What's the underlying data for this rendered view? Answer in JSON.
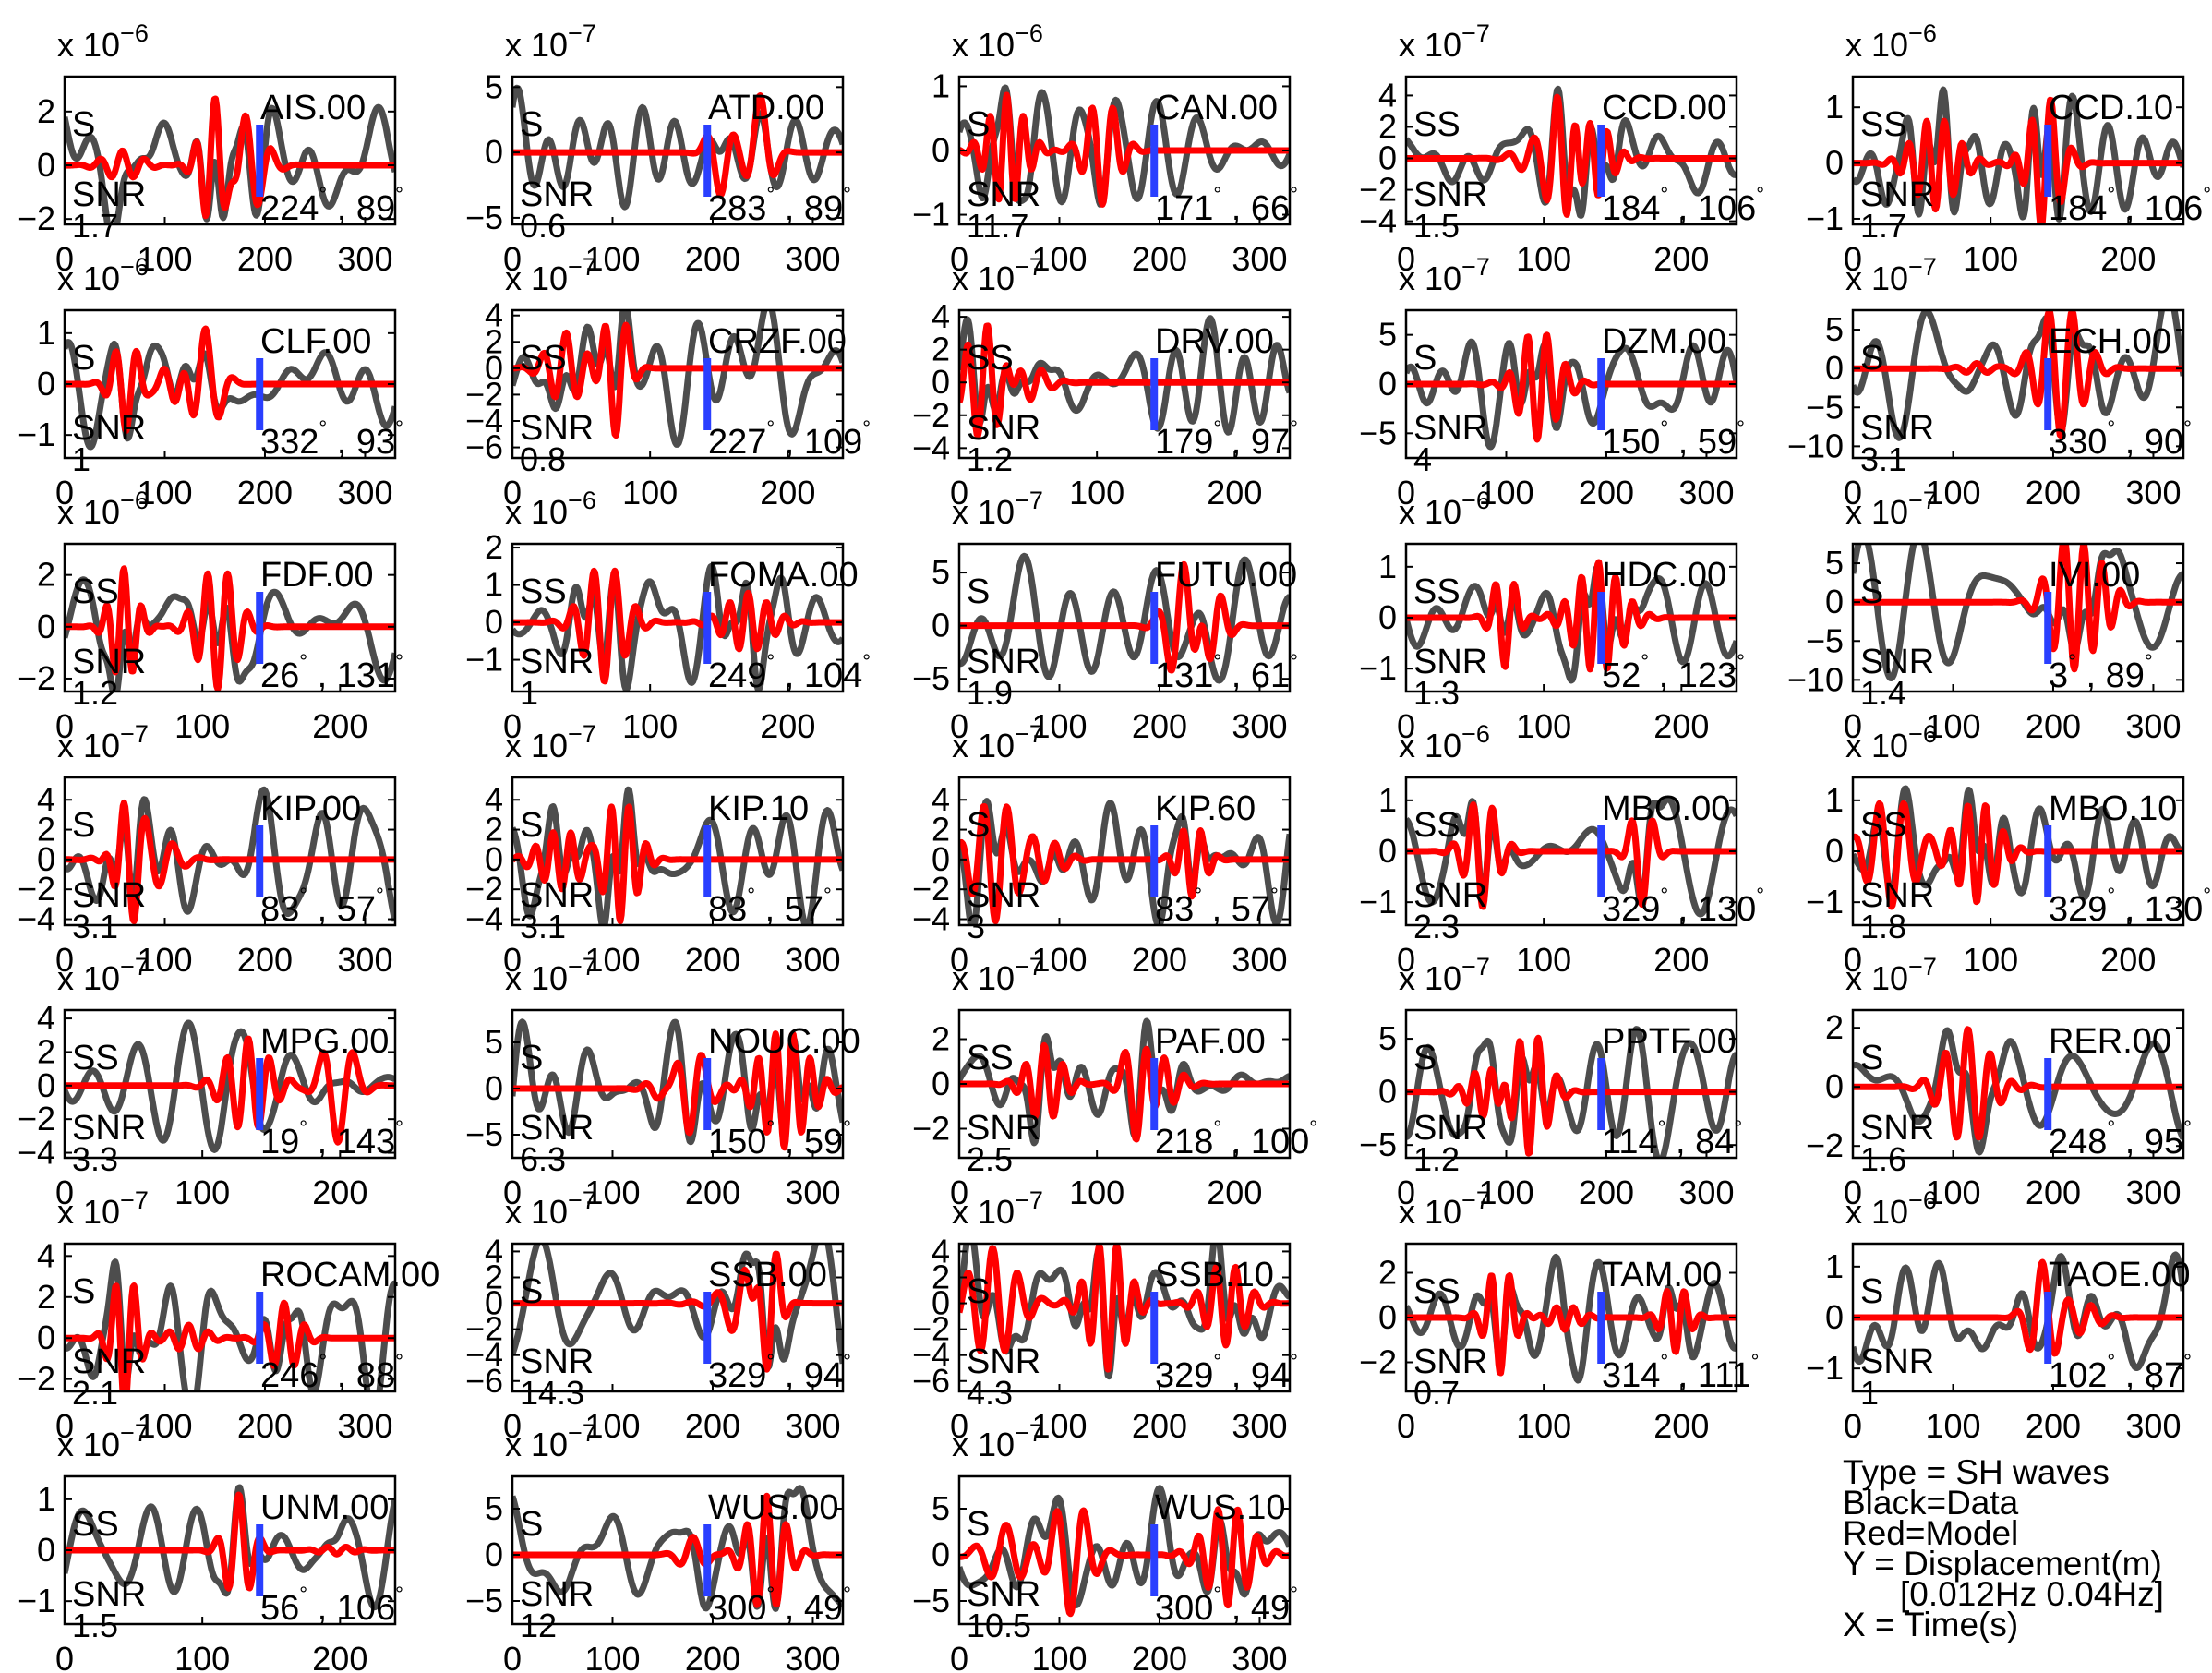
{
  "chart_data": {
    "type": "line",
    "layout": "grid of 33 seismogram panels, 5 columns",
    "legend": {
      "type_line": "Type = SH waves",
      "data_line": "Black=Data",
      "model_line": "Red=Model",
      "y_line": "Y = Displacement(m)",
      "band_line": "[0.012Hz 0.04Hz]",
      "x_line": "X = Time(s)"
    },
    "colors": {
      "data": "#4d4d4d",
      "model": "#ff0000",
      "marker": "#2a3fff"
    },
    "panels": [
      {
        "station": "AIS.00",
        "phase": "S",
        "snr": "1.7",
        "az": "224",
        "dist": "89",
        "exponent": "-6",
        "yticks": [
          -2,
          0,
          2
        ],
        "ylim": [
          -2.2,
          3.3
        ],
        "xticks": [
          0,
          100,
          200,
          300
        ],
        "xmax": 330,
        "show_x_ticks": true
      },
      {
        "station": "ATD.00",
        "phase": "S",
        "snr": "0.6",
        "az": "283",
        "dist": "89",
        "exponent": "-7",
        "yticks": [
          -5,
          0,
          5
        ],
        "ylim": [
          -5.5,
          5.8
        ],
        "xticks": [
          0,
          100,
          200,
          300
        ],
        "xmax": 330,
        "show_x_ticks": true
      },
      {
        "station": "CAN.00",
        "phase": "S",
        "snr": "11.7",
        "az": "171",
        "dist": "66",
        "exponent": "-6",
        "yticks": [
          -1,
          0,
          1
        ],
        "ylim": [
          -1.15,
          1.15
        ],
        "xticks": [
          0,
          100,
          200,
          300
        ],
        "xmax": 330,
        "show_x_ticks": true
      },
      {
        "station": "CCD.00",
        "phase": "SS",
        "snr": "1.5",
        "az": "184",
        "dist": "106",
        "exponent": "-7",
        "yticks": [
          -4,
          -2,
          0,
          2,
          4
        ],
        "ylim": [
          -4.2,
          5.2
        ],
        "xticks": [
          0,
          100,
          200
        ],
        "xmax": 240,
        "show_x_ticks": true
      },
      {
        "station": "CCD.10",
        "phase": "SS",
        "snr": "1.7",
        "az": "184",
        "dist": "106",
        "exponent": "-6",
        "yticks": [
          -1,
          0,
          1
        ],
        "ylim": [
          -1.1,
          1.55
        ],
        "xticks": [
          0,
          100,
          200
        ],
        "xmax": 240,
        "show_x_ticks": true
      },
      {
        "station": "CLF.00",
        "phase": "S",
        "snr": "1",
        "az": "332",
        "dist": "93",
        "exponent": "-6",
        "yticks": [
          -1,
          0,
          1
        ],
        "ylim": [
          -1.45,
          1.45
        ],
        "xticks": [
          0,
          100,
          200,
          300
        ],
        "xmax": 330,
        "show_x_ticks": true
      },
      {
        "station": "CRZF.00",
        "phase": "SS",
        "snr": "0.8",
        "az": "227",
        "dist": "109",
        "exponent": "-7",
        "yticks": [
          -6,
          -4,
          -2,
          0,
          2,
          4
        ],
        "ylim": [
          -6.8,
          4.4
        ],
        "xticks": [
          0,
          100,
          200
        ],
        "xmax": 240,
        "show_x_ticks": true
      },
      {
        "station": "DRV.00",
        "phase": "SS",
        "snr": "1.2",
        "az": "179",
        "dist": "97",
        "exponent": "-7",
        "yticks": [
          -4,
          -2,
          0,
          2,
          4
        ],
        "ylim": [
          -4.6,
          4.4
        ],
        "xticks": [
          0,
          100,
          200
        ],
        "xmax": 240,
        "show_x_ticks": true
      },
      {
        "station": "DZM.00",
        "phase": "S",
        "snr": "4",
        "az": "150",
        "dist": "59",
        "exponent": "-7",
        "yticks": [
          -5,
          0,
          5
        ],
        "ylim": [
          -7.5,
          7.5
        ],
        "xticks": [
          0,
          100,
          200,
          300
        ],
        "xmax": 330,
        "show_x_ticks": true
      },
      {
        "station": "ECH.00",
        "phase": "S",
        "snr": "3.1",
        "az": "330",
        "dist": "90",
        "exponent": "-7",
        "yticks": [
          -10,
          -5,
          0,
          5
        ],
        "ylim": [
          -11.5,
          7.5
        ],
        "xticks": [
          0,
          100,
          200,
          300
        ],
        "xmax": 330,
        "show_x_ticks": true
      },
      {
        "station": "FDF.00",
        "phase": "SS",
        "snr": "1.2",
        "az": "26",
        "dist": "131",
        "exponent": "-6",
        "yticks": [
          -2,
          0,
          2
        ],
        "ylim": [
          -2.5,
          3.2
        ],
        "xticks": [
          0,
          100,
          200
        ],
        "xmax": 240,
        "show_x_ticks": true
      },
      {
        "station": "FOMA.00",
        "phase": "SS",
        "snr": "1",
        "az": "249",
        "dist": "104",
        "exponent": "-6",
        "yticks": [
          -1,
          0,
          1,
          2
        ],
        "ylim": [
          -1.85,
          2.1
        ],
        "xticks": [
          0,
          100,
          200
        ],
        "xmax": 240,
        "show_x_ticks": true
      },
      {
        "station": "FUTU.00",
        "phase": "S",
        "snr": "1.9",
        "az": "131",
        "dist": "61",
        "exponent": "-7",
        "yticks": [
          -5,
          0,
          5
        ],
        "ylim": [
          -6.2,
          7.7
        ],
        "xticks": [
          0,
          100,
          200,
          300
        ],
        "xmax": 330,
        "show_x_ticks": true
      },
      {
        "station": "HDC.00",
        "phase": "SS",
        "snr": "1.3",
        "az": "52",
        "dist": "123",
        "exponent": "-6",
        "yticks": [
          -1,
          0,
          1
        ],
        "ylim": [
          -1.45,
          1.45
        ],
        "xticks": [
          0,
          100,
          200
        ],
        "xmax": 240,
        "show_x_ticks": true
      },
      {
        "station": "IVI.00",
        "phase": "S",
        "snr": "1.4",
        "az": "3",
        "dist": "89",
        "exponent": "-7",
        "yticks": [
          -10,
          -5,
          0,
          5
        ],
        "ylim": [
          -11.5,
          7.5
        ],
        "xticks": [
          0,
          100,
          200,
          300
        ],
        "xmax": 330,
        "show_x_ticks": true
      },
      {
        "station": "KIP.00",
        "phase": "S",
        "snr": "3.1",
        "az": "83",
        "dist": "57",
        "exponent": "-7",
        "yticks": [
          -4,
          -2,
          0,
          2,
          4
        ],
        "ylim": [
          -4.4,
          5.5
        ],
        "xticks": [
          0,
          100,
          200,
          300
        ],
        "xmax": 330,
        "show_x_ticks": true
      },
      {
        "station": "KIP.10",
        "phase": "S",
        "snr": "3.1",
        "az": "83",
        "dist": "57",
        "exponent": "-7",
        "yticks": [
          -4,
          -2,
          0,
          2,
          4
        ],
        "ylim": [
          -4.4,
          5.5
        ],
        "xticks": [
          0,
          100,
          200,
          300
        ],
        "xmax": 330,
        "show_x_ticks": true
      },
      {
        "station": "KIP.60",
        "phase": "S",
        "snr": "3",
        "az": "83",
        "dist": "57",
        "exponent": "-7",
        "yticks": [
          -4,
          -2,
          0,
          2,
          4
        ],
        "ylim": [
          -4.4,
          5.5
        ],
        "xticks": [
          0,
          100,
          200,
          300
        ],
        "xmax": 330,
        "show_x_ticks": true
      },
      {
        "station": "MBO.00",
        "phase": "SS",
        "snr": "2.3",
        "az": "329",
        "dist": "130",
        "exponent": "-6",
        "yticks": [
          -1,
          0,
          1
        ],
        "ylim": [
          -1.45,
          1.45
        ],
        "xticks": [
          0,
          100,
          200
        ],
        "xmax": 240,
        "show_x_ticks": true
      },
      {
        "station": "MBO.10",
        "phase": "SS",
        "snr": "1.8",
        "az": "329",
        "dist": "130",
        "exponent": "-6",
        "yticks": [
          -1,
          0,
          1
        ],
        "ylim": [
          -1.45,
          1.45
        ],
        "xticks": [
          0,
          100,
          200
        ],
        "xmax": 240,
        "show_x_ticks": true
      },
      {
        "station": "MPG.00",
        "phase": "SS",
        "snr": "3.3",
        "az": "19",
        "dist": "143",
        "exponent": "-7",
        "yticks": [
          -4,
          -2,
          0,
          2,
          4
        ],
        "ylim": [
          -4.3,
          4.5
        ],
        "xticks": [
          0,
          100,
          200
        ],
        "xmax": 240,
        "show_x_ticks": true
      },
      {
        "station": "NOUC.00",
        "phase": "S",
        "snr": "6.3",
        "az": "150",
        "dist": "59",
        "exponent": "-7",
        "yticks": [
          -5,
          0,
          5
        ],
        "ylim": [
          -7.5,
          8.5
        ],
        "xticks": [
          0,
          100,
          200,
          300
        ],
        "xmax": 330,
        "show_x_ticks": true
      },
      {
        "station": "PAF.00",
        "phase": "SS",
        "snr": "2.5",
        "az": "218",
        "dist": "100",
        "exponent": "-7",
        "yticks": [
          -2,
          0,
          2
        ],
        "ylim": [
          -3.3,
          3.3
        ],
        "xticks": [
          0,
          100,
          200
        ],
        "xmax": 240,
        "show_x_ticks": true
      },
      {
        "station": "PPTF.00",
        "phase": "S",
        "snr": "1.2",
        "az": "114",
        "dist": "84",
        "exponent": "-7",
        "yticks": [
          -5,
          0,
          5
        ],
        "ylim": [
          -6.2,
          7.7
        ],
        "xticks": [
          0,
          100,
          200,
          300
        ],
        "xmax": 330,
        "show_x_ticks": true
      },
      {
        "station": "RER.00",
        "phase": "S",
        "snr": "1.6",
        "az": "248",
        "dist": "95",
        "exponent": "-7",
        "yticks": [
          -2,
          0,
          2
        ],
        "ylim": [
          -2.4,
          2.6
        ],
        "xticks": [
          0,
          100,
          200,
          300
        ],
        "xmax": 330,
        "show_x_ticks": true
      },
      {
        "station": "ROCAM.00",
        "phase": "S",
        "snr": "2.1",
        "az": "246",
        "dist": "88",
        "exponent": "-7",
        "yticks": [
          -2,
          0,
          2,
          4
        ],
        "ylim": [
          -2.6,
          4.6
        ],
        "xticks": [
          0,
          100,
          200,
          300
        ],
        "xmax": 330,
        "show_x_ticks": true
      },
      {
        "station": "SSB.00",
        "phase": "S",
        "snr": "14.3",
        "az": "329",
        "dist": "94",
        "exponent": "-7",
        "yticks": [
          -6,
          -4,
          -2,
          0,
          2,
          4
        ],
        "ylim": [
          -6.8,
          4.6
        ],
        "xticks": [
          0,
          100,
          200,
          300
        ],
        "xmax": 330,
        "show_x_ticks": true
      },
      {
        "station": "SSB.10",
        "phase": "S",
        "snr": "4.3",
        "az": "329",
        "dist": "94",
        "exponent": "-7",
        "yticks": [
          -6,
          -4,
          -2,
          0,
          2,
          4
        ],
        "ylim": [
          -6.8,
          4.6
        ],
        "xticks": [
          0,
          100,
          200,
          300
        ],
        "xmax": 330,
        "show_x_ticks": true
      },
      {
        "station": "TAM.00",
        "phase": "SS",
        "snr": "0.7",
        "az": "314",
        "dist": "111",
        "exponent": "-7",
        "yticks": [
          -2,
          0,
          2
        ],
        "ylim": [
          -3.3,
          3.3
        ],
        "xticks": [
          0,
          100,
          200
        ],
        "xmax": 240,
        "show_x_ticks": true
      },
      {
        "station": "TAOE.00",
        "phase": "S",
        "snr": "1",
        "az": "102",
        "dist": "87",
        "exponent": "-6",
        "yticks": [
          -1,
          0,
          1
        ],
        "ylim": [
          -1.45,
          1.45
        ],
        "xticks": [
          0,
          100,
          200,
          300
        ],
        "xmax": 330,
        "show_x_ticks": true
      },
      {
        "station": "UNM.00",
        "phase": "SS",
        "snr": "1.5",
        "az": "56",
        "dist": "106",
        "exponent": "-7",
        "yticks": [
          -1,
          0,
          1
        ],
        "ylim": [
          -1.45,
          1.45
        ],
        "xticks": [
          0,
          100,
          200
        ],
        "xmax": 240,
        "show_x_ticks": true
      },
      {
        "station": "WUS.00",
        "phase": "S",
        "snr": "12",
        "az": "300",
        "dist": "49",
        "exponent": "-7",
        "yticks": [
          -5,
          0,
          5
        ],
        "ylim": [
          -7.5,
          8.5
        ],
        "xticks": [
          0,
          100,
          200,
          300
        ],
        "xmax": 330,
        "show_x_ticks": true
      },
      {
        "station": "WUS.10",
        "phase": "S",
        "snr": "10.5",
        "az": "300",
        "dist": "49",
        "exponent": "-7",
        "yticks": [
          -5,
          0,
          5
        ],
        "ylim": [
          -7.5,
          8.5
        ],
        "xticks": [
          0,
          100,
          200,
          300
        ],
        "xmax": 330,
        "show_x_ticks": true
      }
    ]
  }
}
